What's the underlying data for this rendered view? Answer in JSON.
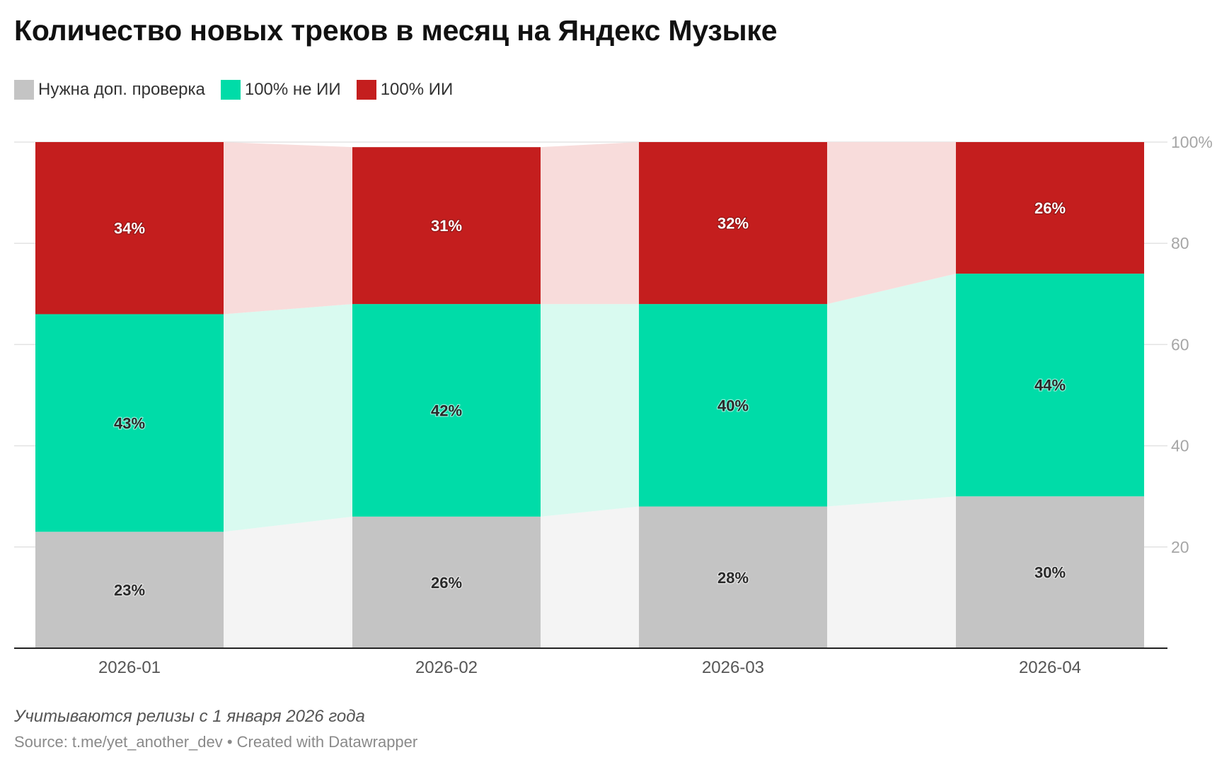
{
  "chart_data": {
    "type": "bar",
    "stacked": true,
    "title": "Количество новых треков в месяц на Яндекс Музыке",
    "categories": [
      "2026-01",
      "2026-02",
      "2026-03",
      "2026-04"
    ],
    "series": [
      {
        "name": "Нужна доп. проверка",
        "values": [
          23,
          26,
          28,
          30
        ],
        "color": "#c4c4c4",
        "area_color": "#f4f4f4",
        "label_color": "#2a2a2a"
      },
      {
        "name": "100% не ИИ",
        "values": [
          43,
          42,
          40,
          44
        ],
        "color": "#00dca8",
        "area_color": "#d9faf0",
        "label_color": "#2a2a2a"
      },
      {
        "name": "100% ИИ",
        "values": [
          34,
          31,
          32,
          26
        ],
        "color": "#c41e1e",
        "area_color": "#f8dcdb",
        "label_color": "#ffffff"
      }
    ],
    "value_labels": [
      [
        "23%",
        "26%",
        "28%",
        "30%"
      ],
      [
        "43%",
        "42%",
        "40%",
        "44%"
      ],
      [
        "34%",
        "31%",
        "32%",
        "26%"
      ]
    ],
    "y_ticks": [
      {
        "value": 20,
        "label": "20"
      },
      {
        "value": 40,
        "label": "40"
      },
      {
        "value": 60,
        "label": "60"
      },
      {
        "value": 80,
        "label": "80"
      },
      {
        "value": 100,
        "label": "100%"
      }
    ],
    "ylim": [
      0,
      100
    ],
    "y_axis_side": "right",
    "grid": true,
    "legend_position": "top-left"
  },
  "note": "Учитываются релизы с 1 января 2026 года",
  "source": "Source: t.me/yet_another_dev • Created with Datawrapper"
}
